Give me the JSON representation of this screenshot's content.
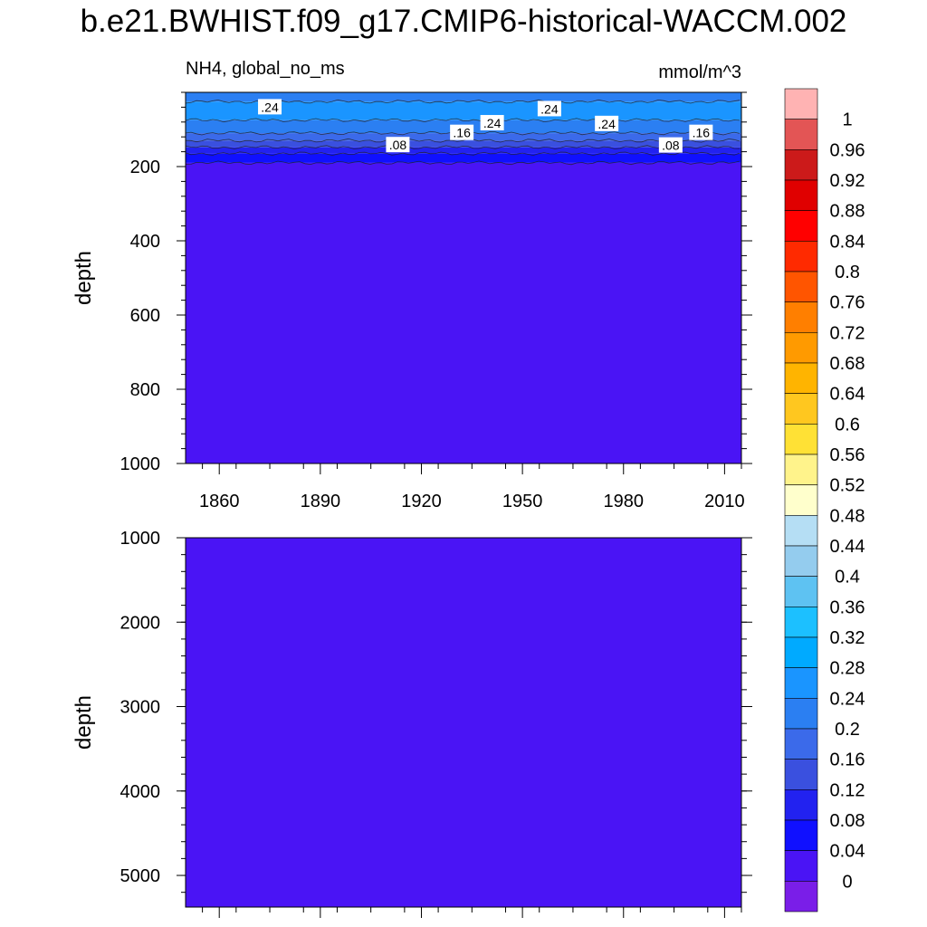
{
  "title": "b.e21.BWHIST.f09_g17.CMIP6-historical-WACCM.002",
  "chart_data": {
    "type": "heatmap",
    "variable_label": "NH4, global_no_ms",
    "units_label": "mmol/m^3",
    "x_tick_labels": [
      "1860",
      "1890",
      "1920",
      "1950",
      "1980",
      "2010"
    ],
    "x_ticks": [
      1860,
      1890,
      1920,
      1950,
      1980,
      2010
    ],
    "xlim": [
      1850,
      2015
    ],
    "colorbar": {
      "levels": [
        "1",
        "0.96",
        "0.92",
        "0.88",
        "0.84",
        "0.8",
        "0.76",
        "0.72",
        "0.68",
        "0.64",
        "0.6",
        "0.56",
        "0.52",
        "0.48",
        "0.44",
        "0.4",
        "0.36",
        "0.32",
        "0.28",
        "0.24",
        "0.2",
        "0.16",
        "0.12",
        "0.08",
        "0.04",
        "0"
      ],
      "colors": [
        "#ffb3b3",
        "#e35555",
        "#cc1a1a",
        "#e00000",
        "#ff0000",
        "#ff2a00",
        "#ff5500",
        "#ff7f00",
        "#ff9a00",
        "#ffb400",
        "#ffc71f",
        "#ffe135",
        "#fff38b",
        "#ffffcc",
        "#b5def4",
        "#94ccee",
        "#5ec2f2",
        "#1cc0ff",
        "#00aaff",
        "#1a95ff",
        "#2b7ff2",
        "#3b6aea",
        "#3a50df",
        "#2222f0",
        "#1010ff",
        "#4a14f5",
        "#7a1ee8"
      ]
    },
    "panels": [
      {
        "name": "upper",
        "ylabel": "depth",
        "ylim": [
          0,
          1000
        ],
        "y_ticks": [
          200,
          400,
          600,
          800,
          1000
        ],
        "y_tick_labels": [
          "200",
          "400",
          "600",
          "800",
          "1000"
        ],
        "bands": [
          {
            "from": 0,
            "to": 25,
            "color": "#2b7ff2"
          },
          {
            "from": 25,
            "to": 75,
            "color": "#1a95ff"
          },
          {
            "from": 75,
            "to": 110,
            "color": "#2b7ff2"
          },
          {
            "from": 110,
            "to": 130,
            "color": "#3b6aea"
          },
          {
            "from": 130,
            "to": 148,
            "color": "#3a50df"
          },
          {
            "from": 148,
            "to": 165,
            "color": "#2222f0"
          },
          {
            "from": 165,
            "to": 190,
            "color": "#1010ff"
          },
          {
            "from": 190,
            "to": 1000,
            "color": "#4a14f5"
          }
        ],
        "contour_labels": [
          {
            "text": ".24",
            "x": 1875,
            "y": 40
          },
          {
            "text": ".24",
            "x": 1941,
            "y": 83
          },
          {
            "text": ".24",
            "x": 1958,
            "y": 45
          },
          {
            "text": ".24",
            "x": 1975,
            "y": 85
          },
          {
            "text": ".16",
            "x": 1932,
            "y": 109
          },
          {
            "text": ".16",
            "x": 2003,
            "y": 109
          },
          {
            "text": ".08",
            "x": 1913,
            "y": 142
          },
          {
            "text": ".08",
            "x": 1994,
            "y": 143
          }
        ]
      },
      {
        "name": "lower",
        "ylabel": "depth",
        "ylim": [
          1000,
          5375
        ],
        "y_ticks": [
          1000,
          2000,
          3000,
          4000,
          5000
        ],
        "y_tick_labels": [
          "1000",
          "2000",
          "3000",
          "4000",
          "5000"
        ],
        "bands": [
          {
            "from": 1000,
            "to": 5375,
            "color": "#4a14f5"
          }
        ],
        "contour_labels": []
      }
    ]
  }
}
